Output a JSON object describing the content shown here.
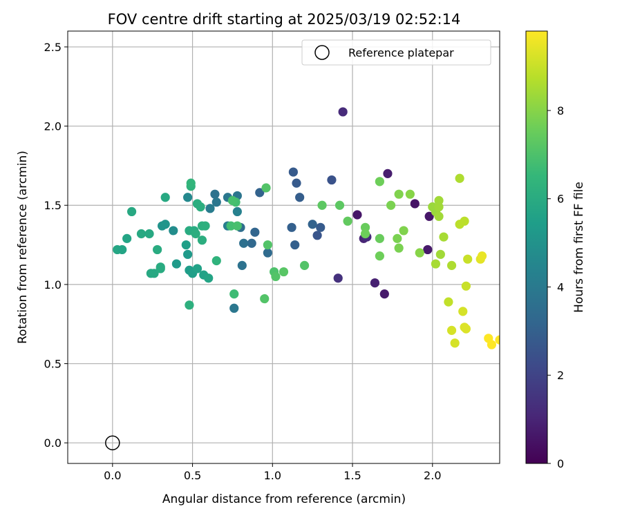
{
  "chart_data": {
    "type": "scatter",
    "title": "FOV centre drift starting at 2025/03/19 02:52:14",
    "xlabel": "Angular distance from reference (arcmin)",
    "ylabel": "Rotation from reference (arcmin)",
    "xlim": [
      -0.28,
      2.42
    ],
    "ylim": [
      -0.13,
      2.6
    ],
    "xticks": [
      "0.0",
      "0.5",
      "1.0",
      "1.5",
      "2.0"
    ],
    "xtick_values": [
      0.0,
      0.5,
      1.0,
      1.5,
      2.0
    ],
    "yticks": [
      "0.0",
      "0.5",
      "1.0",
      "1.5",
      "2.0",
      "2.5"
    ],
    "ytick_values": [
      0.0,
      0.5,
      1.0,
      1.5,
      2.0,
      2.5
    ],
    "grid": true,
    "legend": {
      "label": "Reference platepar",
      "placement": "upper right"
    },
    "reference_point": {
      "x": 0.0,
      "y": 0.0
    },
    "colorbar": {
      "label": "Hours from first FF file",
      "colormap": "viridis",
      "range": [
        0,
        9.8
      ],
      "ticks": [
        "0",
        "2",
        "4",
        "6",
        "8"
      ],
      "tick_values": [
        0,
        2,
        4,
        6,
        8
      ]
    },
    "colormap_stops": [
      "#440154",
      "#482878",
      "#3e4989",
      "#31688e",
      "#26828e",
      "#1f9e89",
      "#35b779",
      "#6ece58",
      "#b5de2b",
      "#fde725"
    ],
    "series": [
      {
        "points": [
          [
            1.44,
            2.09,
            1.2
          ],
          [
            1.72,
            1.7,
            0.8
          ],
          [
            1.53,
            1.44,
            0.6
          ],
          [
            1.89,
            1.51,
            0.5
          ],
          [
            1.98,
            1.43,
            0.6
          ],
          [
            1.97,
            1.22,
            0.7
          ],
          [
            1.57,
            1.29,
            1.0
          ],
          [
            1.59,
            1.3,
            1.2
          ],
          [
            1.64,
            1.01,
            0.9
          ],
          [
            1.7,
            0.94,
            0.7
          ],
          [
            1.41,
            1.04,
            1.4
          ],
          [
            1.13,
            1.71,
            2.8
          ],
          [
            1.15,
            1.64,
            2.8
          ],
          [
            1.17,
            1.55,
            2.9
          ],
          [
            1.37,
            1.66,
            2.5
          ],
          [
            1.12,
            1.36,
            3.0
          ],
          [
            1.14,
            1.25,
            3.0
          ],
          [
            1.25,
            1.38,
            3.1
          ],
          [
            1.28,
            1.31,
            2.6
          ],
          [
            1.3,
            1.36,
            2.8
          ],
          [
            0.92,
            1.58,
            3.1
          ],
          [
            0.89,
            1.33,
            3.2
          ],
          [
            0.87,
            1.26,
            3.3
          ],
          [
            0.97,
            1.2,
            3.4
          ],
          [
            0.82,
            1.26,
            3.6
          ],
          [
            0.81,
            1.12,
            3.7
          ],
          [
            0.8,
            1.36,
            3.5
          ],
          [
            0.76,
            0.85,
            3.9
          ],
          [
            0.64,
            1.57,
            3.7
          ],
          [
            0.65,
            1.52,
            3.9
          ],
          [
            0.72,
            1.55,
            3.9
          ],
          [
            0.78,
            1.56,
            3.8
          ],
          [
            0.61,
            1.48,
            4.1
          ],
          [
            0.72,
            1.37,
            4.2
          ],
          [
            0.78,
            1.46,
            4.3
          ],
          [
            0.47,
            1.55,
            4.6
          ],
          [
            0.38,
            1.34,
            4.8
          ],
          [
            0.31,
            1.37,
            5.0
          ],
          [
            0.33,
            1.38,
            5.1
          ],
          [
            0.4,
            1.13,
            5.3
          ],
          [
            0.47,
            1.19,
            5.3
          ],
          [
            0.48,
            1.09,
            5.4
          ],
          [
            0.5,
            1.07,
            5.5
          ],
          [
            0.46,
            1.25,
            5.5
          ],
          [
            0.53,
            1.1,
            5.6
          ],
          [
            0.57,
            1.06,
            5.6
          ],
          [
            0.6,
            1.04,
            5.7
          ],
          [
            0.33,
            1.55,
            5.9
          ],
          [
            0.12,
            1.46,
            5.9
          ],
          [
            0.09,
            1.29,
            5.7
          ],
          [
            0.03,
            1.22,
            5.8
          ],
          [
            0.06,
            1.22,
            5.7
          ],
          [
            0.18,
            1.32,
            5.9
          ],
          [
            0.23,
            1.32,
            5.9
          ],
          [
            0.24,
            1.07,
            5.9
          ],
          [
            0.26,
            1.07,
            5.9
          ],
          [
            0.28,
            1.22,
            6.0
          ],
          [
            0.3,
            1.1,
            6.0
          ],
          [
            0.3,
            1.11,
            6.0
          ],
          [
            0.48,
            1.34,
            6.0
          ],
          [
            0.51,
            1.34,
            6.0
          ],
          [
            0.52,
            1.32,
            6.1
          ],
          [
            0.53,
            1.51,
            6.1
          ],
          [
            0.55,
            1.49,
            6.1
          ],
          [
            0.56,
            1.28,
            6.1
          ],
          [
            0.56,
            1.37,
            6.2
          ],
          [
            0.58,
            1.37,
            6.2
          ],
          [
            0.48,
            0.87,
            6.2
          ],
          [
            0.49,
            1.62,
            6.3
          ],
          [
            0.49,
            1.64,
            6.4
          ],
          [
            0.65,
            1.15,
            6.3
          ],
          [
            0.77,
            1.52,
            6.8
          ],
          [
            0.75,
            1.53,
            6.9
          ],
          [
            0.74,
            1.37,
            6.8
          ],
          [
            0.78,
            1.37,
            6.9
          ],
          [
            0.76,
            0.94,
            6.7
          ],
          [
            0.96,
            1.61,
            7.1
          ],
          [
            0.97,
            1.25,
            7.1
          ],
          [
            1.01,
            1.08,
            7.0
          ],
          [
            1.02,
            1.05,
            7.1
          ],
          [
            0.95,
            0.91,
            7.1
          ],
          [
            1.07,
            1.08,
            7.2
          ],
          [
            1.2,
            1.12,
            7.1
          ],
          [
            1.31,
            1.5,
            7.3
          ],
          [
            1.42,
            1.5,
            7.3
          ],
          [
            1.47,
            1.4,
            7.4
          ],
          [
            1.58,
            1.36,
            7.5
          ],
          [
            1.67,
            1.29,
            7.5
          ],
          [
            1.67,
            1.18,
            7.6
          ],
          [
            1.58,
            1.32,
            7.6
          ],
          [
            1.67,
            1.65,
            7.6
          ],
          [
            1.74,
            1.5,
            7.8
          ],
          [
            1.78,
            1.29,
            7.8
          ],
          [
            1.79,
            1.23,
            7.8
          ],
          [
            1.79,
            1.57,
            7.9
          ],
          [
            1.82,
            1.34,
            7.9
          ],
          [
            1.86,
            1.57,
            8.0
          ],
          [
            1.92,
            1.2,
            8.0
          ],
          [
            2.0,
            1.49,
            8.3
          ],
          [
            2.02,
            1.46,
            8.3
          ],
          [
            2.04,
            1.53,
            8.4
          ],
          [
            2.04,
            1.49,
            8.4
          ],
          [
            2.04,
            1.43,
            8.4
          ],
          [
            2.05,
            1.19,
            8.4
          ],
          [
            2.02,
            1.13,
            8.5
          ],
          [
            2.07,
            1.3,
            8.5
          ],
          [
            2.12,
            1.12,
            8.6
          ],
          [
            2.17,
            1.67,
            8.6
          ],
          [
            2.17,
            1.38,
            8.8
          ],
          [
            2.2,
            1.4,
            8.8
          ],
          [
            2.1,
            0.89,
            8.9
          ],
          [
            2.21,
            0.99,
            9.0
          ],
          [
            2.22,
            1.16,
            9.0
          ],
          [
            2.19,
            0.83,
            9.2
          ],
          [
            2.12,
            0.71,
            9.2
          ],
          [
            2.14,
            0.63,
            9.2
          ],
          [
            2.2,
            0.73,
            9.3
          ],
          [
            2.21,
            0.72,
            9.3
          ],
          [
            2.3,
            1.16,
            9.4
          ],
          [
            2.31,
            1.18,
            9.5
          ],
          [
            2.35,
            0.66,
            9.8
          ],
          [
            2.37,
            0.62,
            9.8
          ],
          [
            2.42,
            0.65,
            9.8
          ]
        ]
      }
    ]
  }
}
